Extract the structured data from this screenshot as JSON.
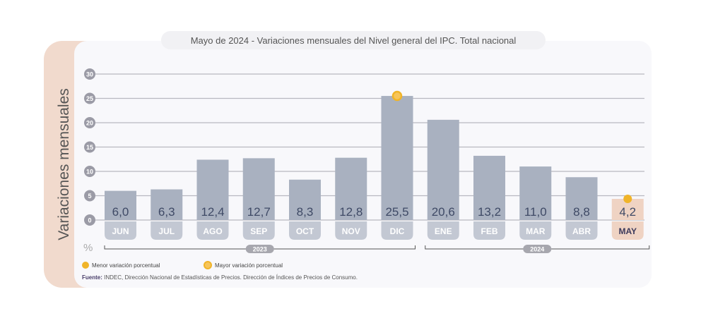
{
  "chart_data": {
    "type": "bar",
    "title": "Mayo de 2024 - Variaciones mensuales del Nivel general del IPC. Total nacional",
    "ylabel": "Variaciones mensuales",
    "yunit": "%",
    "ylim": [
      0,
      30
    ],
    "yticks": [
      0,
      5,
      10,
      15,
      20,
      25,
      30
    ],
    "grid": true,
    "categories": [
      "JUN",
      "JUL",
      "AGO",
      "SEP",
      "OCT",
      "NOV",
      "DIC",
      "ENE",
      "FEB",
      "MAR",
      "ABR",
      "MAY"
    ],
    "values": [
      6.0,
      6.3,
      12.4,
      12.7,
      8.3,
      12.8,
      25.5,
      20.6,
      13.2,
      11.0,
      8.8,
      4.2
    ],
    "value_labels": [
      "6,0",
      "6,3",
      "12,4",
      "12,7",
      "8,3",
      "12,8",
      "25,5",
      "20,6",
      "13,2",
      "11,0",
      "8,8",
      "4,2"
    ],
    "year_groups": [
      {
        "label": "2023",
        "from": "JUN",
        "to": "DIC"
      },
      {
        "label": "2024",
        "from": "ENE",
        "to": "MAY"
      }
    ],
    "highlight": {
      "category": "MAY",
      "color": "#efd3c3"
    },
    "markers": [
      {
        "category": "MAY",
        "type": "min",
        "color": "#f0b429"
      },
      {
        "category": "DIC",
        "type": "max",
        "color": "#f0b429"
      }
    ],
    "legend": [
      {
        "label": "Menor variación porcentual",
        "color": "#f0b429"
      },
      {
        "label": "Mayor variación porcentual",
        "color": "#f0b429"
      }
    ],
    "legend_position": "bottom-left",
    "bar_color": "#a9b1c0",
    "source_label": "Fuente:",
    "source_text": "INDEC, Dirección Nacional de Estadísticas de Precios. Dirección de Índices de Precios de Consumo."
  }
}
